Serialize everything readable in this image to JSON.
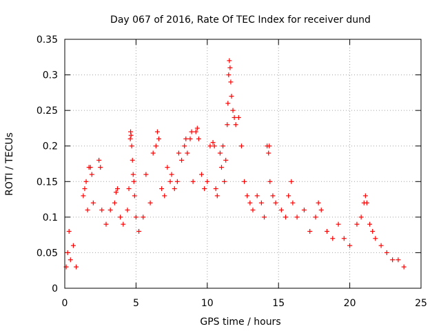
{
  "chart_data": {
    "type": "scatter",
    "title": "Day 067 of 2016, Rate Of TEC Index for receiver dund",
    "xlabel": "GPS time / hours",
    "ylabel": "ROTI / TECUs",
    "xlim": [
      0,
      25
    ],
    "ylim": [
      0,
      0.35
    ],
    "x_ticks": [
      0,
      5,
      10,
      15,
      20,
      25
    ],
    "x_tick_labels": [
      "0",
      "5",
      "10",
      "15",
      "20",
      "25"
    ],
    "y_ticks": [
      0,
      0.05,
      0.1,
      0.15,
      0.2,
      0.25,
      0.3,
      0.35
    ],
    "y_tick_labels": [
      "0",
      "0.05",
      "0.1",
      "0.15",
      "0.2",
      "0.25",
      "0.3",
      "0.35"
    ],
    "grid": true,
    "marker": "+",
    "marker_color": "#ff0000",
    "legend": "none",
    "series": [
      {
        "points": [
          [
            0.1,
            0.03
          ],
          [
            0.2,
            0.05
          ],
          [
            0.3,
            0.08
          ],
          [
            0.4,
            0.04
          ],
          [
            0.6,
            0.06
          ],
          [
            0.8,
            0.03
          ],
          [
            1.3,
            0.13
          ],
          [
            1.4,
            0.14
          ],
          [
            1.5,
            0.15
          ],
          [
            1.6,
            0.11
          ],
          [
            1.7,
            0.17
          ],
          [
            1.8,
            0.17
          ],
          [
            1.9,
            0.16
          ],
          [
            2.0,
            0.12
          ],
          [
            2.4,
            0.18
          ],
          [
            2.5,
            0.17
          ],
          [
            2.6,
            0.11
          ],
          [
            2.9,
            0.09
          ],
          [
            3.2,
            0.11
          ],
          [
            3.5,
            0.12
          ],
          [
            3.6,
            0.135
          ],
          [
            3.7,
            0.14
          ],
          [
            3.9,
            0.1
          ],
          [
            4.1,
            0.09
          ],
          [
            4.4,
            0.11
          ],
          [
            4.5,
            0.14
          ],
          [
            4.6,
            0.21
          ],
          [
            4.62,
            0.22
          ],
          [
            4.65,
            0.215
          ],
          [
            4.7,
            0.2
          ],
          [
            4.75,
            0.18
          ],
          [
            4.8,
            0.16
          ],
          [
            4.85,
            0.15
          ],
          [
            4.9,
            0.13
          ],
          [
            5.0,
            0.1
          ],
          [
            5.2,
            0.08
          ],
          [
            5.5,
            0.1
          ],
          [
            5.7,
            0.16
          ],
          [
            6.0,
            0.12
          ],
          [
            6.2,
            0.19
          ],
          [
            6.4,
            0.2
          ],
          [
            6.5,
            0.22
          ],
          [
            6.6,
            0.21
          ],
          [
            6.8,
            0.14
          ],
          [
            7.0,
            0.13
          ],
          [
            7.2,
            0.17
          ],
          [
            7.4,
            0.15
          ],
          [
            7.5,
            0.16
          ],
          [
            7.7,
            0.14
          ],
          [
            7.9,
            0.15
          ],
          [
            8.0,
            0.19
          ],
          [
            8.2,
            0.18
          ],
          [
            8.4,
            0.2
          ],
          [
            8.5,
            0.21
          ],
          [
            8.6,
            0.19
          ],
          [
            8.8,
            0.21
          ],
          [
            8.9,
            0.22
          ],
          [
            9.0,
            0.15
          ],
          [
            9.2,
            0.22
          ],
          [
            9.3,
            0.225
          ],
          [
            9.4,
            0.21
          ],
          [
            9.6,
            0.16
          ],
          [
            9.8,
            0.14
          ],
          [
            10.0,
            0.15
          ],
          [
            10.2,
            0.2
          ],
          [
            10.4,
            0.205
          ],
          [
            10.5,
            0.2
          ],
          [
            10.6,
            0.14
          ],
          [
            10.7,
            0.13
          ],
          [
            10.9,
            0.19
          ],
          [
            11.0,
            0.17
          ],
          [
            11.1,
            0.2
          ],
          [
            11.2,
            0.15
          ],
          [
            11.3,
            0.18
          ],
          [
            11.4,
            0.23
          ],
          [
            11.45,
            0.26
          ],
          [
            11.5,
            0.3
          ],
          [
            11.55,
            0.32
          ],
          [
            11.6,
            0.31
          ],
          [
            11.65,
            0.29
          ],
          [
            11.7,
            0.27
          ],
          [
            11.8,
            0.25
          ],
          [
            11.9,
            0.24
          ],
          [
            12.0,
            0.23
          ],
          [
            12.2,
            0.24
          ],
          [
            12.4,
            0.2
          ],
          [
            12.6,
            0.15
          ],
          [
            12.8,
            0.13
          ],
          [
            13.0,
            0.12
          ],
          [
            13.2,
            0.11
          ],
          [
            13.5,
            0.13
          ],
          [
            13.8,
            0.12
          ],
          [
            14.0,
            0.1
          ],
          [
            14.2,
            0.2
          ],
          [
            14.3,
            0.19
          ],
          [
            14.35,
            0.2
          ],
          [
            14.4,
            0.15
          ],
          [
            14.6,
            0.13
          ],
          [
            14.8,
            0.12
          ],
          [
            15.2,
            0.11
          ],
          [
            15.5,
            0.1
          ],
          [
            15.7,
            0.13
          ],
          [
            15.9,
            0.15
          ],
          [
            16.0,
            0.12
          ],
          [
            16.3,
            0.1
          ],
          [
            16.8,
            0.11
          ],
          [
            17.2,
            0.08
          ],
          [
            17.6,
            0.1
          ],
          [
            17.8,
            0.12
          ],
          [
            18.0,
            0.11
          ],
          [
            18.4,
            0.08
          ],
          [
            18.8,
            0.07
          ],
          [
            19.2,
            0.09
          ],
          [
            19.6,
            0.07
          ],
          [
            20.0,
            0.06
          ],
          [
            20.5,
            0.09
          ],
          [
            20.8,
            0.1
          ],
          [
            21.0,
            0.12
          ],
          [
            21.1,
            0.13
          ],
          [
            21.2,
            0.12
          ],
          [
            21.4,
            0.09
          ],
          [
            21.6,
            0.08
          ],
          [
            21.8,
            0.07
          ],
          [
            22.2,
            0.06
          ],
          [
            22.6,
            0.05
          ],
          [
            23.0,
            0.04
          ],
          [
            23.4,
            0.04
          ],
          [
            23.8,
            0.03
          ]
        ]
      }
    ]
  }
}
